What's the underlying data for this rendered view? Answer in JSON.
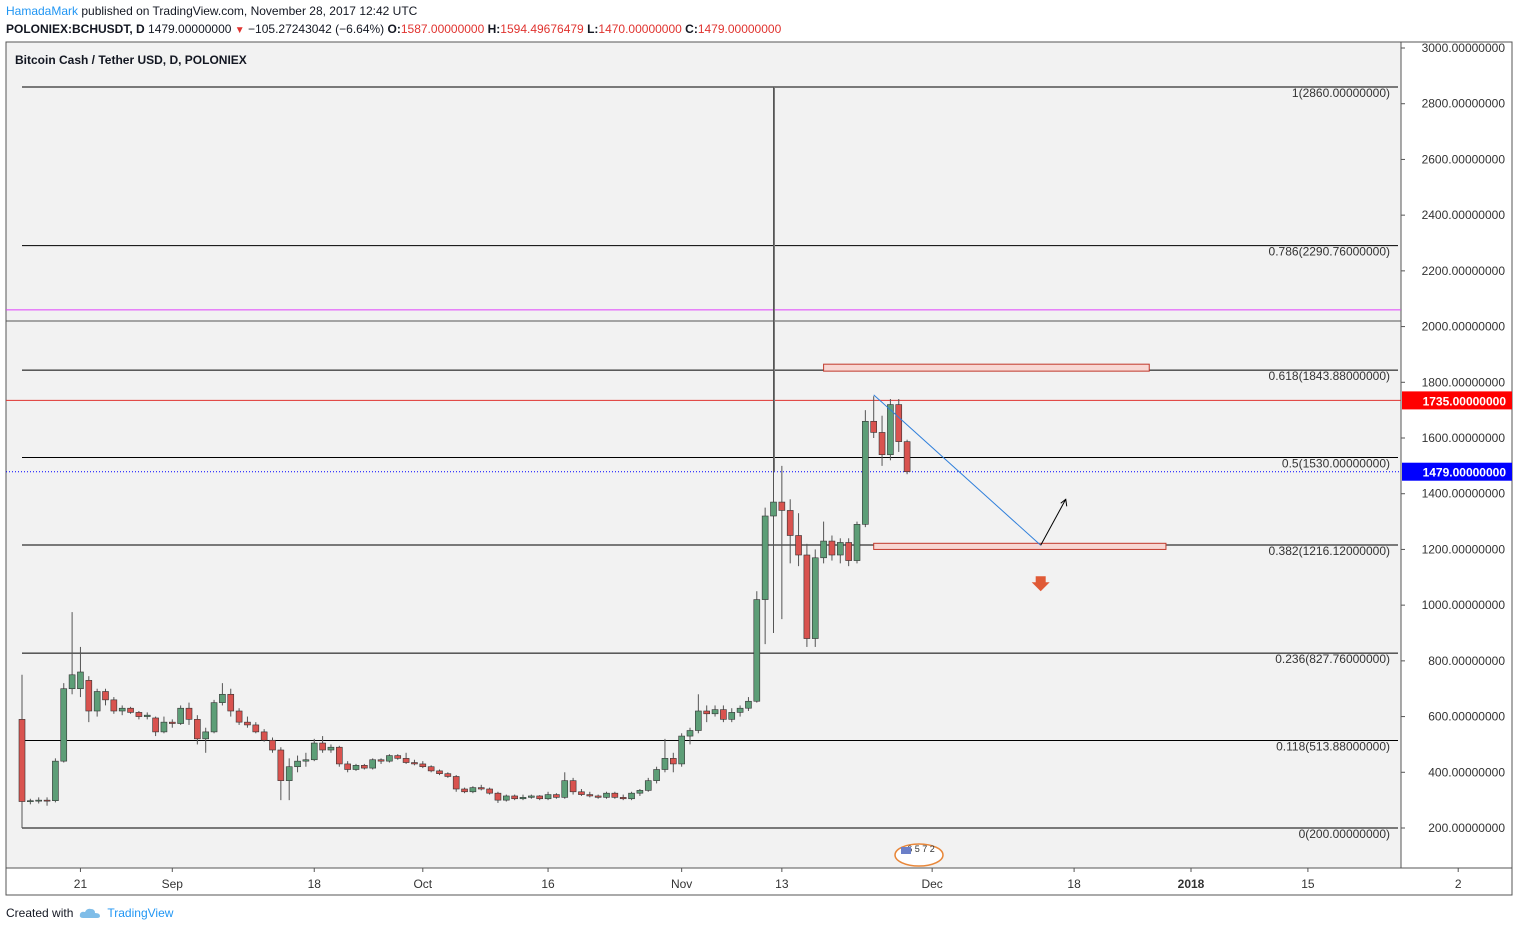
{
  "header": {
    "user": "HamadaMark",
    "published_text": " published on TradingView.com, November 28, 2017 12:42 UTC",
    "symbol": "POLONIEX:BCHUSDT, D",
    "last": "1479.00000000",
    "change": "−105.27243042 (−6.64%)",
    "o_label": "O:",
    "o_val": "1587.00000000",
    "h_label": "H:",
    "h_val": "1594.49676479",
    "l_label": "L:",
    "l_val": "1470.00000000",
    "c_label": "C:",
    "c_val": "1479.00000000"
  },
  "footer": {
    "created_with": "Created with",
    "brand": "TradingView"
  },
  "badge_text": "6 5 7 2",
  "colors": {
    "up": "#5d9e77",
    "down": "#d9534f",
    "fib": "#000000",
    "pink": "#e040fb",
    "price_line": "#0000ff",
    "hline_red": "#e0332f",
    "zone_fill": "#f8d7d3",
    "zone_stroke": "#c0392b",
    "trend": "#2f7fdb"
  },
  "chart_data": {
    "type": "candlestick",
    "title": "Bitcoin Cash / Tether USD, D, POLONIEX",
    "ylim": [
      0,
      3000
    ],
    "yticks": [
      "3000.00000000",
      "2800.00000000",
      "2600.00000000",
      "2400.00000000",
      "2200.00000000",
      "2000.00000000",
      "1800.00000000",
      "1600.00000000",
      "1400.00000000",
      "1200.00000000",
      "1000.00000000",
      "800.00000000",
      "600.00000000",
      "400.00000000",
      "200.00000000"
    ],
    "ytick_values": [
      3000,
      2800,
      2600,
      2400,
      2200,
      2000,
      1800,
      1600,
      1400,
      1200,
      1000,
      800,
      600,
      400,
      200
    ],
    "xticks": [
      {
        "label": "21",
        "date": "2017-08-21"
      },
      {
        "label": "Sep",
        "date": "2017-09-01"
      },
      {
        "label": "18",
        "date": "2017-09-18"
      },
      {
        "label": "Oct",
        "date": "2017-10-01"
      },
      {
        "label": "16",
        "date": "2017-10-16"
      },
      {
        "label": "Nov",
        "date": "2017-11-01"
      },
      {
        "label": "13",
        "date": "2017-11-13"
      },
      {
        "label": "Dec",
        "date": "2017-12-01"
      },
      {
        "label": "18",
        "date": "2017-12-18"
      },
      {
        "label": "2018",
        "date": "2018-01-01"
      },
      {
        "label": "15",
        "date": "2018-01-15"
      },
      {
        "label": "2",
        "date": "2018-02-02"
      }
    ],
    "x_start": "2017-08-14",
    "fib_levels": [
      {
        "label": "1(2860.00000000)",
        "value": 2860
      },
      {
        "label": "0.786(2290.76000000)",
        "value": 2290.76
      },
      {
        "label": "0.618(1843.88000000)",
        "value": 1843.88
      },
      {
        "label": "0.5(1530.00000000)",
        "value": 1530
      },
      {
        "label": "0.382(1216.12000000)",
        "value": 1216.12
      },
      {
        "label": "0.236(827.76000000)",
        "value": 827.76
      },
      {
        "label": "0.118(513.88000000)",
        "value": 513.88
      },
      {
        "label": "0(200.00000000)",
        "value": 200
      }
    ],
    "hlines": [
      {
        "value": 2060,
        "color": "#e040fb"
      },
      {
        "value": 2020,
        "color": "#555555"
      },
      {
        "value": 1735,
        "color": "#e0332f"
      }
    ],
    "price_labels": [
      {
        "text": "1735.00000000",
        "value": 1735,
        "bg": "#ff0000"
      },
      {
        "text": "1479.00000000",
        "value": 1479,
        "bg": "#0000ff"
      }
    ],
    "zones": [
      {
        "from": "2017-11-18",
        "to": "2017-12-27",
        "low": 1840,
        "high": 1865
      },
      {
        "from": "2017-11-24",
        "to": "2017-12-29",
        "low": 1200,
        "high": 1222
      }
    ],
    "trendline": [
      {
        "date": "2017-11-24",
        "value": 1755
      },
      {
        "date": "2017-12-14",
        "value": 1215
      }
    ],
    "projection": [
      {
        "date": "2017-12-14",
        "value": 1215
      },
      {
        "date": "2017-12-17",
        "value": 1380
      }
    ],
    "down_marker": {
      "date": "2017-12-14",
      "value": 1075
    },
    "candles": [
      {
        "d": "2017-08-14",
        "o": 590,
        "h": 750,
        "l": 200,
        "c": 295
      },
      {
        "d": "2017-08-15",
        "o": 295,
        "h": 305,
        "l": 285,
        "c": 298
      },
      {
        "d": "2017-08-16",
        "o": 298,
        "h": 310,
        "l": 288,
        "c": 300
      },
      {
        "d": "2017-08-17",
        "o": 300,
        "h": 310,
        "l": 280,
        "c": 298
      },
      {
        "d": "2017-08-18",
        "o": 298,
        "h": 450,
        "l": 292,
        "c": 440
      },
      {
        "d": "2017-08-19",
        "o": 440,
        "h": 720,
        "l": 435,
        "c": 700
      },
      {
        "d": "2017-08-20",
        "o": 700,
        "h": 975,
        "l": 680,
        "c": 750
      },
      {
        "d": "2017-08-21",
        "o": 700,
        "h": 850,
        "l": 670,
        "c": 760
      },
      {
        "d": "2017-08-22",
        "o": 730,
        "h": 745,
        "l": 580,
        "c": 620
      },
      {
        "d": "2017-08-23",
        "o": 620,
        "h": 700,
        "l": 600,
        "c": 690
      },
      {
        "d": "2017-08-24",
        "o": 690,
        "h": 700,
        "l": 640,
        "c": 660
      },
      {
        "d": "2017-08-25",
        "o": 660,
        "h": 670,
        "l": 610,
        "c": 620
      },
      {
        "d": "2017-08-26",
        "o": 620,
        "h": 640,
        "l": 605,
        "c": 630
      },
      {
        "d": "2017-08-27",
        "o": 630,
        "h": 635,
        "l": 610,
        "c": 615
      },
      {
        "d": "2017-08-28",
        "o": 615,
        "h": 620,
        "l": 590,
        "c": 600
      },
      {
        "d": "2017-08-29",
        "o": 600,
        "h": 615,
        "l": 590,
        "c": 605
      },
      {
        "d": "2017-08-30",
        "o": 595,
        "h": 600,
        "l": 530,
        "c": 545
      },
      {
        "d": "2017-08-31",
        "o": 545,
        "h": 600,
        "l": 540,
        "c": 580
      },
      {
        "d": "2017-09-01",
        "o": 580,
        "h": 590,
        "l": 560,
        "c": 575
      },
      {
        "d": "2017-09-02",
        "o": 575,
        "h": 640,
        "l": 570,
        "c": 630
      },
      {
        "d": "2017-09-03",
        "o": 630,
        "h": 650,
        "l": 570,
        "c": 590
      },
      {
        "d": "2017-09-04",
        "o": 590,
        "h": 605,
        "l": 500,
        "c": 520
      },
      {
        "d": "2017-09-05",
        "o": 520,
        "h": 560,
        "l": 470,
        "c": 545
      },
      {
        "d": "2017-09-06",
        "o": 545,
        "h": 660,
        "l": 540,
        "c": 650
      },
      {
        "d": "2017-09-07",
        "o": 650,
        "h": 720,
        "l": 640,
        "c": 680
      },
      {
        "d": "2017-09-08",
        "o": 680,
        "h": 700,
        "l": 600,
        "c": 620
      },
      {
        "d": "2017-09-09",
        "o": 620,
        "h": 630,
        "l": 570,
        "c": 580
      },
      {
        "d": "2017-09-10",
        "o": 580,
        "h": 600,
        "l": 560,
        "c": 570
      },
      {
        "d": "2017-09-11",
        "o": 570,
        "h": 580,
        "l": 540,
        "c": 545
      },
      {
        "d": "2017-09-12",
        "o": 545,
        "h": 555,
        "l": 510,
        "c": 515
      },
      {
        "d": "2017-09-13",
        "o": 515,
        "h": 525,
        "l": 470,
        "c": 480
      },
      {
        "d": "2017-09-14",
        "o": 480,
        "h": 490,
        "l": 300,
        "c": 370
      },
      {
        "d": "2017-09-15",
        "o": 370,
        "h": 450,
        "l": 300,
        "c": 420
      },
      {
        "d": "2017-09-16",
        "o": 420,
        "h": 460,
        "l": 400,
        "c": 440
      },
      {
        "d": "2017-09-17",
        "o": 440,
        "h": 470,
        "l": 420,
        "c": 445
      },
      {
        "d": "2017-09-18",
        "o": 445,
        "h": 520,
        "l": 440,
        "c": 505
      },
      {
        "d": "2017-09-19",
        "o": 505,
        "h": 530,
        "l": 470,
        "c": 480
      },
      {
        "d": "2017-09-20",
        "o": 480,
        "h": 500,
        "l": 470,
        "c": 490
      },
      {
        "d": "2017-09-21",
        "o": 490,
        "h": 495,
        "l": 420,
        "c": 430
      },
      {
        "d": "2017-09-22",
        "o": 430,
        "h": 440,
        "l": 400,
        "c": 410
      },
      {
        "d": "2017-09-23",
        "o": 410,
        "h": 430,
        "l": 405,
        "c": 425
      },
      {
        "d": "2017-09-24",
        "o": 425,
        "h": 430,
        "l": 410,
        "c": 415
      },
      {
        "d": "2017-09-25",
        "o": 415,
        "h": 450,
        "l": 410,
        "c": 445
      },
      {
        "d": "2017-09-26",
        "o": 445,
        "h": 450,
        "l": 430,
        "c": 440
      },
      {
        "d": "2017-09-27",
        "o": 440,
        "h": 465,
        "l": 435,
        "c": 460
      },
      {
        "d": "2017-09-28",
        "o": 460,
        "h": 465,
        "l": 445,
        "c": 450
      },
      {
        "d": "2017-09-29",
        "o": 450,
        "h": 470,
        "l": 430,
        "c": 435
      },
      {
        "d": "2017-09-30",
        "o": 435,
        "h": 445,
        "l": 425,
        "c": 430
      },
      {
        "d": "2017-10-01",
        "o": 430,
        "h": 440,
        "l": 415,
        "c": 420
      },
      {
        "d": "2017-10-02",
        "o": 420,
        "h": 425,
        "l": 400,
        "c": 405
      },
      {
        "d": "2017-10-03",
        "o": 405,
        "h": 410,
        "l": 390,
        "c": 395
      },
      {
        "d": "2017-10-04",
        "o": 395,
        "h": 400,
        "l": 380,
        "c": 385
      },
      {
        "d": "2017-10-05",
        "o": 385,
        "h": 390,
        "l": 330,
        "c": 340
      },
      {
        "d": "2017-10-06",
        "o": 340,
        "h": 345,
        "l": 325,
        "c": 330
      },
      {
        "d": "2017-10-07",
        "o": 330,
        "h": 350,
        "l": 325,
        "c": 345
      },
      {
        "d": "2017-10-08",
        "o": 345,
        "h": 355,
        "l": 335,
        "c": 340
      },
      {
        "d": "2017-10-09",
        "o": 340,
        "h": 345,
        "l": 320,
        "c": 325
      },
      {
        "d": "2017-10-10",
        "o": 325,
        "h": 330,
        "l": 290,
        "c": 300
      },
      {
        "d": "2017-10-11",
        "o": 300,
        "h": 320,
        "l": 295,
        "c": 315
      },
      {
        "d": "2017-10-12",
        "o": 315,
        "h": 320,
        "l": 300,
        "c": 305
      },
      {
        "d": "2017-10-13",
        "o": 305,
        "h": 320,
        "l": 300,
        "c": 310
      },
      {
        "d": "2017-10-14",
        "o": 310,
        "h": 320,
        "l": 305,
        "c": 315
      },
      {
        "d": "2017-10-15",
        "o": 315,
        "h": 318,
        "l": 300,
        "c": 305
      },
      {
        "d": "2017-10-16",
        "o": 305,
        "h": 330,
        "l": 300,
        "c": 320
      },
      {
        "d": "2017-10-17",
        "o": 320,
        "h": 325,
        "l": 305,
        "c": 310
      },
      {
        "d": "2017-10-18",
        "o": 310,
        "h": 400,
        "l": 305,
        "c": 370
      },
      {
        "d": "2017-10-19",
        "o": 370,
        "h": 380,
        "l": 320,
        "c": 330
      },
      {
        "d": "2017-10-20",
        "o": 330,
        "h": 340,
        "l": 315,
        "c": 320
      },
      {
        "d": "2017-10-21",
        "o": 320,
        "h": 330,
        "l": 310,
        "c": 315
      },
      {
        "d": "2017-10-22",
        "o": 315,
        "h": 320,
        "l": 305,
        "c": 310
      },
      {
        "d": "2017-10-23",
        "o": 310,
        "h": 330,
        "l": 305,
        "c": 325
      },
      {
        "d": "2017-10-24",
        "o": 325,
        "h": 330,
        "l": 305,
        "c": 310
      },
      {
        "d": "2017-10-25",
        "o": 310,
        "h": 320,
        "l": 300,
        "c": 305
      },
      {
        "d": "2017-10-26",
        "o": 305,
        "h": 330,
        "l": 300,
        "c": 325
      },
      {
        "d": "2017-10-27",
        "o": 325,
        "h": 340,
        "l": 315,
        "c": 335
      },
      {
        "d": "2017-10-28",
        "o": 335,
        "h": 380,
        "l": 330,
        "c": 370
      },
      {
        "d": "2017-10-29",
        "o": 370,
        "h": 420,
        "l": 360,
        "c": 410
      },
      {
        "d": "2017-10-30",
        "o": 410,
        "h": 520,
        "l": 400,
        "c": 450
      },
      {
        "d": "2017-10-31",
        "o": 450,
        "h": 470,
        "l": 400,
        "c": 430
      },
      {
        "d": "2017-11-01",
        "o": 430,
        "h": 540,
        "l": 420,
        "c": 530
      },
      {
        "d": "2017-11-02",
        "o": 530,
        "h": 560,
        "l": 500,
        "c": 550
      },
      {
        "d": "2017-11-03",
        "o": 550,
        "h": 680,
        "l": 540,
        "c": 620
      },
      {
        "d": "2017-11-04",
        "o": 620,
        "h": 640,
        "l": 580,
        "c": 610
      },
      {
        "d": "2017-11-05",
        "o": 610,
        "h": 640,
        "l": 600,
        "c": 625
      },
      {
        "d": "2017-11-06",
        "o": 625,
        "h": 640,
        "l": 580,
        "c": 590
      },
      {
        "d": "2017-11-07",
        "o": 590,
        "h": 630,
        "l": 580,
        "c": 615
      },
      {
        "d": "2017-11-08",
        "o": 615,
        "h": 640,
        "l": 600,
        "c": 630
      },
      {
        "d": "2017-11-09",
        "o": 630,
        "h": 670,
        "l": 620,
        "c": 655
      },
      {
        "d": "2017-11-10",
        "o": 655,
        "h": 1050,
        "l": 650,
        "c": 1020
      },
      {
        "d": "2017-11-11",
        "o": 1020,
        "h": 1350,
        "l": 860,
        "c": 1320
      },
      {
        "d": "2017-11-12",
        "o": 1320,
        "h": 2860,
        "l": 900,
        "c": 1370
      },
      {
        "d": "2017-11-13",
        "o": 1370,
        "h": 1500,
        "l": 950,
        "c": 1340
      },
      {
        "d": "2017-11-14",
        "o": 1340,
        "h": 1380,
        "l": 1150,
        "c": 1250
      },
      {
        "d": "2017-11-15",
        "o": 1250,
        "h": 1330,
        "l": 1140,
        "c": 1180
      },
      {
        "d": "2017-11-16",
        "o": 1180,
        "h": 1220,
        "l": 850,
        "c": 880
      },
      {
        "d": "2017-11-17",
        "o": 880,
        "h": 1200,
        "l": 850,
        "c": 1170
      },
      {
        "d": "2017-11-18",
        "o": 1170,
        "h": 1300,
        "l": 1150,
        "c": 1230
      },
      {
        "d": "2017-11-19",
        "o": 1230,
        "h": 1250,
        "l": 1160,
        "c": 1180
      },
      {
        "d": "2017-11-20",
        "o": 1180,
        "h": 1240,
        "l": 1150,
        "c": 1225
      },
      {
        "d": "2017-11-21",
        "o": 1225,
        "h": 1240,
        "l": 1140,
        "c": 1160
      },
      {
        "d": "2017-11-22",
        "o": 1160,
        "h": 1300,
        "l": 1150,
        "c": 1290
      },
      {
        "d": "2017-11-23",
        "o": 1290,
        "h": 1700,
        "l": 1280,
        "c": 1660
      },
      {
        "d": "2017-11-24",
        "o": 1660,
        "h": 1750,
        "l": 1600,
        "c": 1620
      },
      {
        "d": "2017-11-25",
        "o": 1620,
        "h": 1680,
        "l": 1500,
        "c": 1540
      },
      {
        "d": "2017-11-26",
        "o": 1540,
        "h": 1740,
        "l": 1520,
        "c": 1720
      },
      {
        "d": "2017-11-27",
        "o": 1720,
        "h": 1740,
        "l": 1550,
        "c": 1587
      },
      {
        "d": "2017-11-28",
        "o": 1587,
        "h": 1594,
        "l": 1470,
        "c": 1479
      }
    ]
  }
}
